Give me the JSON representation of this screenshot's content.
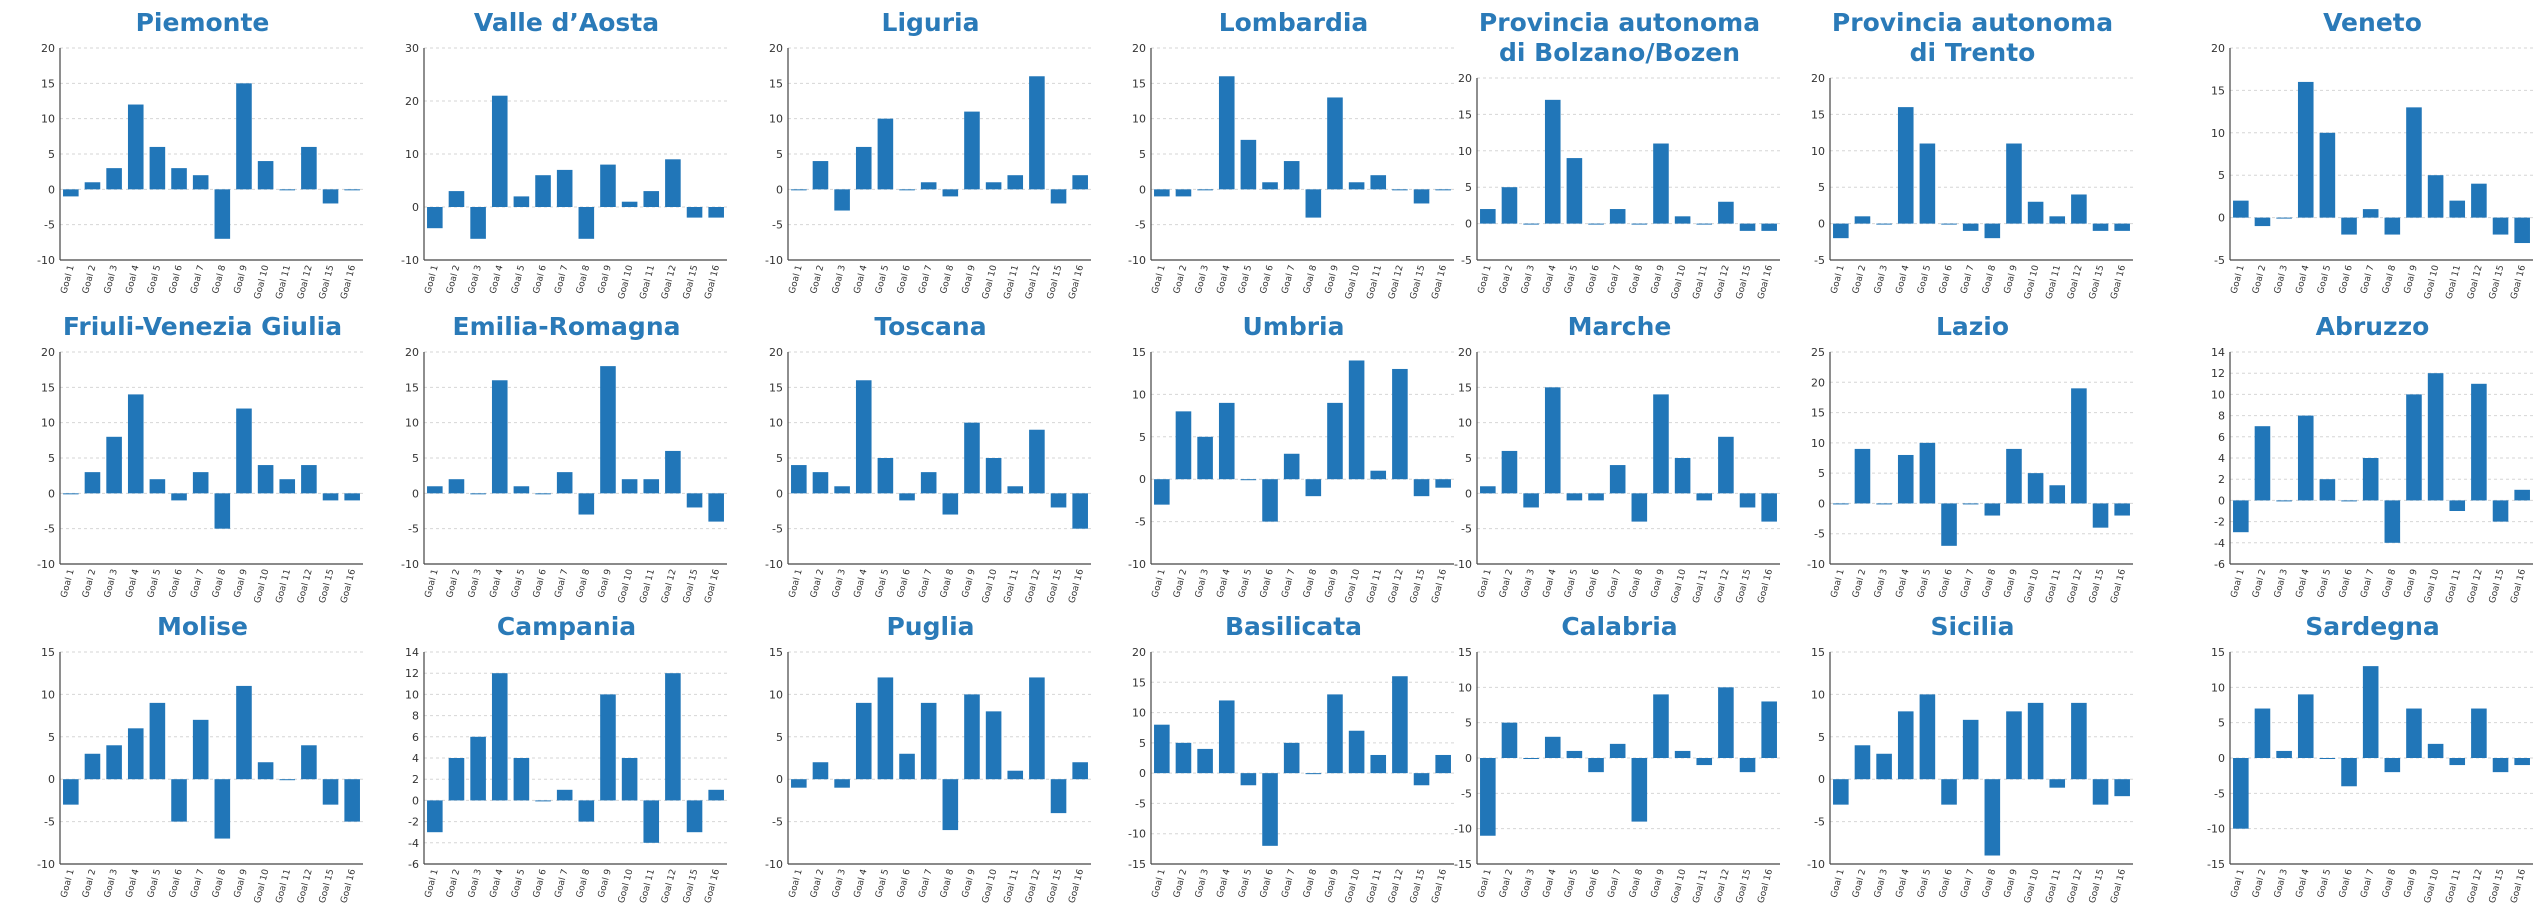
{
  "colors": {
    "bar": "#2176b8",
    "title": "#2a7ab8",
    "axis": "#444444",
    "grid": "#d6d6d6"
  },
  "chart_data": [
    {
      "type": "bar",
      "title": "Piemonte",
      "categories": [
        "Goal 1",
        "Goal 2",
        "Goal 3",
        "Goal 4",
        "Goal 5",
        "Goal 6",
        "Goal 7",
        "Goal 8",
        "Goal 9",
        "Goal 10",
        "Goal 11",
        "Goal 12",
        "Goal 15",
        "Goal 16"
      ],
      "values": [
        -1,
        1,
        3,
        12,
        6,
        3,
        2,
        -7,
        15,
        4,
        0,
        6,
        -2,
        0
      ],
      "ylim": [
        -10,
        20
      ],
      "yticks": [
        -10,
        -5,
        0,
        5,
        10,
        15,
        20
      ],
      "grid": true
    },
    {
      "type": "bar",
      "title": "Valle d’Aosta",
      "categories": [
        "Goal 1",
        "Goal 2",
        "Goal 3",
        "Goal 4",
        "Goal 5",
        "Goal 6",
        "Goal 7",
        "Goal 8",
        "Goal 9",
        "Goal 10",
        "Goal 11",
        "Goal 12",
        "Goal 15",
        "Goal 16"
      ],
      "values": [
        -4,
        3,
        -6,
        21,
        2,
        6,
        7,
        -6,
        8,
        1,
        3,
        9,
        -2,
        -2
      ],
      "ylim": [
        -10,
        30
      ],
      "yticks": [
        -10,
        0,
        10,
        20,
        30
      ],
      "grid": true
    },
    {
      "type": "bar",
      "title": "Liguria",
      "categories": [
        "Goal 1",
        "Goal 2",
        "Goal 3",
        "Goal 4",
        "Goal 5",
        "Goal 6",
        "Goal 7",
        "Goal 8",
        "Goal 9",
        "Goal 10",
        "Goal 11",
        "Goal 12",
        "Goal 15",
        "Goal 16"
      ],
      "values": [
        0,
        4,
        -3,
        6,
        10,
        0,
        1,
        -1,
        11,
        1,
        2,
        16,
        -2,
        2
      ],
      "ylim": [
        -10,
        20
      ],
      "yticks": [
        -10,
        -5,
        0,
        5,
        10,
        15,
        20
      ],
      "grid": true
    },
    {
      "type": "bar",
      "title": "Lombardia",
      "categories": [
        "Goal 1",
        "Goal 2",
        "Goal 3",
        "Goal 4",
        "Goal 5",
        "Goal 6",
        "Goal 7",
        "Goal 8",
        "Goal 9",
        "Goal 10",
        "Goal 11",
        "Goal 12",
        "Goal 15",
        "Goal 16"
      ],
      "values": [
        -1,
        -1,
        0,
        16,
        7,
        1,
        4,
        -4,
        13,
        1,
        2,
        0,
        -2,
        0
      ],
      "ylim": [
        -10,
        20
      ],
      "yticks": [
        -10,
        -5,
        0,
        5,
        10,
        15,
        20
      ],
      "grid": true
    },
    {
      "type": "bar",
      "title": "Provincia autonoma\ndi Bolzano/Bozen",
      "categories": [
        "Goal 1",
        "Goal 2",
        "Goal 3",
        "Goal 4",
        "Goal 5",
        "Goal 6",
        "Goal 7",
        "Goal 8",
        "Goal 9",
        "Goal 10",
        "Goal 11",
        "Goal 12",
        "Goal 15",
        "Goal 16"
      ],
      "values": [
        2,
        5,
        0,
        17,
        9,
        0,
        2,
        0,
        11,
        1,
        0,
        3,
        -1,
        -1
      ],
      "ylim": [
        -5,
        20
      ],
      "yticks": [
        -5,
        0,
        5,
        10,
        15,
        20
      ],
      "grid": true
    },
    {
      "type": "bar",
      "title": "Provincia autonoma\ndi Trento",
      "categories": [
        "Goal 1",
        "Goal 2",
        "Goal 3",
        "Goal 4",
        "Goal 5",
        "Goal 6",
        "Goal 7",
        "Goal 8",
        "Goal 9",
        "Goal 10",
        "Goal 11",
        "Goal 12",
        "Goal 15",
        "Goal 16"
      ],
      "values": [
        -2,
        1,
        0,
        16,
        11,
        0,
        -1,
        -2,
        11,
        3,
        1,
        4,
        -1,
        -1
      ],
      "ylim": [
        -5,
        20
      ],
      "yticks": [
        -5,
        0,
        5,
        10,
        15,
        20
      ],
      "grid": true
    },
    {
      "type": "bar",
      "title": "Veneto",
      "categories": [
        "Goal 1",
        "Goal 2",
        "Goal 3",
        "Goal 4",
        "Goal 5",
        "Goal 6",
        "Goal 7",
        "Goal 8",
        "Goal 9",
        "Goal 10",
        "Goal 11",
        "Goal 12",
        "Goal 15",
        "Goal 16"
      ],
      "values": [
        2,
        -1,
        0,
        16,
        10,
        -2,
        1,
        -2,
        13,
        5,
        2,
        4,
        -2,
        -3
      ],
      "ylim": [
        -5,
        20
      ],
      "yticks": [
        -5,
        0,
        5,
        10,
        15,
        20
      ],
      "grid": true
    },
    {
      "type": "bar",
      "title": "Friuli-Venezia Giulia",
      "categories": [
        "Goal 1",
        "Goal 2",
        "Goal 3",
        "Goal 4",
        "Goal 5",
        "Goal 6",
        "Goal 7",
        "Goal 8",
        "Goal 9",
        "Goal 10",
        "Goal 11",
        "Goal 12",
        "Goal 15",
        "Goal 16"
      ],
      "values": [
        0,
        3,
        8,
        14,
        2,
        -1,
        3,
        -5,
        12,
        4,
        2,
        4,
        -1,
        -1
      ],
      "ylim": [
        -10,
        20
      ],
      "yticks": [
        -10,
        -5,
        0,
        5,
        10,
        15,
        20
      ],
      "grid": true
    },
    {
      "type": "bar",
      "title": "Emilia-Romagna",
      "categories": [
        "Goal 1",
        "Goal 2",
        "Goal 3",
        "Goal 4",
        "Goal 5",
        "Goal 6",
        "Goal 7",
        "Goal 8",
        "Goal 9",
        "Goal 10",
        "Goal 11",
        "Goal 12",
        "Goal 15",
        "Goal 16"
      ],
      "values": [
        1,
        2,
        0,
        16,
        1,
        0,
        3,
        -3,
        18,
        2,
        2,
        6,
        -2,
        -4
      ],
      "ylim": [
        -10,
        20
      ],
      "yticks": [
        -10,
        -5,
        0,
        5,
        10,
        15,
        20
      ],
      "grid": true
    },
    {
      "type": "bar",
      "title": "Toscana",
      "categories": [
        "Goal 1",
        "Goal 2",
        "Goal 3",
        "Goal 4",
        "Goal 5",
        "Goal 6",
        "Goal 7",
        "Goal 8",
        "Goal 9",
        "Goal 10",
        "Goal 11",
        "Goal 12",
        "Goal 15",
        "Goal 16"
      ],
      "values": [
        4,
        3,
        1,
        16,
        5,
        -1,
        3,
        -3,
        10,
        5,
        1,
        9,
        -2,
        -5
      ],
      "ylim": [
        -10,
        20
      ],
      "yticks": [
        -10,
        -5,
        0,
        5,
        10,
        15,
        20
      ],
      "grid": true
    },
    {
      "type": "bar",
      "title": "Umbria",
      "categories": [
        "Goal 1",
        "Goal 2",
        "Goal 3",
        "Goal 4",
        "Goal 5",
        "Goal 6",
        "Goal 7",
        "Goal 8",
        "Goal 9",
        "Goal 10",
        "Goal 11",
        "Goal 12",
        "Goal 15",
        "Goal 16"
      ],
      "values": [
        -3,
        8,
        5,
        9,
        0,
        -5,
        3,
        -2,
        9,
        14,
        1,
        13,
        -2,
        -1
      ],
      "ylim": [
        -10,
        15
      ],
      "yticks": [
        -10,
        -5,
        0,
        5,
        10,
        15
      ],
      "grid": true
    },
    {
      "type": "bar",
      "title": "Marche",
      "categories": [
        "Goal 1",
        "Goal 2",
        "Goal 3",
        "Goal 4",
        "Goal 5",
        "Goal 6",
        "Goal 7",
        "Goal 8",
        "Goal 9",
        "Goal 10",
        "Goal 11",
        "Goal 12",
        "Goal 15",
        "Goal 16"
      ],
      "values": [
        1,
        6,
        -2,
        15,
        -1,
        -1,
        4,
        -4,
        14,
        5,
        -1,
        8,
        -2,
        -4
      ],
      "ylim": [
        -10,
        20
      ],
      "yticks": [
        -10,
        -5,
        0,
        5,
        10,
        15,
        20
      ],
      "grid": true
    },
    {
      "type": "bar",
      "title": "Lazio",
      "categories": [
        "Goal 1",
        "Goal 2",
        "Goal 3",
        "Goal 4",
        "Goal 5",
        "Goal 6",
        "Goal 7",
        "Goal 8",
        "Goal 9",
        "Goal 10",
        "Goal 11",
        "Goal 12",
        "Goal 15",
        "Goal 16"
      ],
      "values": [
        0,
        9,
        0,
        8,
        10,
        -7,
        0,
        -2,
        9,
        5,
        3,
        19,
        -4,
        -2
      ],
      "ylim": [
        -10,
        25
      ],
      "yticks": [
        -10,
        -5,
        0,
        5,
        10,
        15,
        20,
        25
      ],
      "grid": true
    },
    {
      "type": "bar",
      "title": "Abruzzo",
      "categories": [
        "Goal 1",
        "Goal 2",
        "Goal 3",
        "Goal 4",
        "Goal 5",
        "Goal 6",
        "Goal 7",
        "Goal 8",
        "Goal 9",
        "Goal 10",
        "Goal 11",
        "Goal 12",
        "Goal 15",
        "Goal 16"
      ],
      "values": [
        -3,
        7,
        0,
        8,
        2,
        0,
        4,
        -4,
        10,
        12,
        -1,
        11,
        -2,
        1
      ],
      "ylim": [
        -6,
        14
      ],
      "yticks": [
        -6,
        -4,
        -2,
        0,
        2,
        4,
        6,
        8,
        10,
        12,
        14
      ],
      "grid": true
    },
    {
      "type": "bar",
      "title": "Molise",
      "categories": [
        "Goal 1",
        "Goal 2",
        "Goal 3",
        "Goal 4",
        "Goal 5",
        "Goal 6",
        "Goal 7",
        "Goal 8",
        "Goal 9",
        "Goal 10",
        "Goal 11",
        "Goal 12",
        "Goal 15",
        "Goal 16"
      ],
      "values": [
        -3,
        3,
        4,
        6,
        9,
        -5,
        7,
        -7,
        11,
        2,
        0,
        4,
        -3,
        -5
      ],
      "ylim": [
        -10,
        15
      ],
      "yticks": [
        -10,
        -5,
        0,
        5,
        10,
        15
      ],
      "grid": true
    },
    {
      "type": "bar",
      "title": "Campania",
      "categories": [
        "Goal 1",
        "Goal 2",
        "Goal 3",
        "Goal 4",
        "Goal 5",
        "Goal 6",
        "Goal 7",
        "Goal 8",
        "Goal 9",
        "Goal 10",
        "Goal 11",
        "Goal 12",
        "Goal 15",
        "Goal 16"
      ],
      "values": [
        -3,
        4,
        6,
        12,
        4,
        0,
        1,
        -2,
        10,
        4,
        -4,
        12,
        -3,
        1
      ],
      "ylim": [
        -6,
        14
      ],
      "yticks": [
        -6,
        -4,
        -2,
        0,
        2,
        4,
        6,
        8,
        10,
        12,
        14
      ],
      "grid": true
    },
    {
      "type": "bar",
      "title": "Puglia",
      "categories": [
        "Goal 1",
        "Goal 2",
        "Goal 3",
        "Goal 4",
        "Goal 5",
        "Goal 6",
        "Goal 7",
        "Goal 8",
        "Goal 9",
        "Goal 10",
        "Goal 11",
        "Goal 12",
        "Goal 15",
        "Goal 16"
      ],
      "values": [
        -1,
        2,
        -1,
        9,
        12,
        3,
        9,
        -6,
        10,
        8,
        1,
        12,
        -4,
        2
      ],
      "ylim": [
        -10,
        15
      ],
      "yticks": [
        -10,
        -5,
        0,
        5,
        10,
        15
      ],
      "grid": true
    },
    {
      "type": "bar",
      "title": "Basilicata",
      "categories": [
        "Goal 1",
        "Goal 2",
        "Goal 3",
        "Goal 4",
        "Goal 5",
        "Goal 6",
        "Goal 7",
        "Goal 8",
        "Goal 9",
        "Goal 10",
        "Goal 11",
        "Goal 12",
        "Goal 15",
        "Goal 16"
      ],
      "values": [
        8,
        5,
        4,
        12,
        -2,
        -12,
        5,
        0,
        13,
        7,
        3,
        16,
        -2,
        3
      ],
      "ylim": [
        -15,
        20
      ],
      "yticks": [
        -15,
        -10,
        -5,
        0,
        5,
        10,
        15,
        20
      ],
      "grid": true
    },
    {
      "type": "bar",
      "title": "Calabria",
      "categories": [
        "Goal 1",
        "Goal 2",
        "Goal 3",
        "Goal 4",
        "Goal 5",
        "Goal 6",
        "Goal 7",
        "Goal 8",
        "Goal 9",
        "Goal 10",
        "Goal 11",
        "Goal 12",
        "Goal 15",
        "Goal 16"
      ],
      "values": [
        -11,
        5,
        0,
        3,
        1,
        -2,
        2,
        -9,
        9,
        1,
        -1,
        10,
        -2,
        8
      ],
      "ylim": [
        -15,
        15
      ],
      "yticks": [
        -15,
        -10,
        -5,
        0,
        5,
        10,
        15
      ],
      "grid": true
    },
    {
      "type": "bar",
      "title": "Sicilia",
      "categories": [
        "Goal 1",
        "Goal 2",
        "Goal 3",
        "Goal 4",
        "Goal 5",
        "Goal 6",
        "Goal 7",
        "Goal 8",
        "Goal 9",
        "Goal 10",
        "Goal 11",
        "Goal 12",
        "Goal 15",
        "Goal 16"
      ],
      "values": [
        -3,
        4,
        3,
        8,
        10,
        -3,
        7,
        -9,
        8,
        9,
        -1,
        9,
        -3,
        -2
      ],
      "ylim": [
        -10,
        15
      ],
      "yticks": [
        -10,
        -5,
        0,
        5,
        10,
        15
      ],
      "grid": true
    },
    {
      "type": "bar",
      "title": "Sardegna",
      "categories": [
        "Goal 1",
        "Goal 2",
        "Goal 3",
        "Goal 4",
        "Goal 5",
        "Goal 6",
        "Goal 7",
        "Goal 8",
        "Goal 9",
        "Goal 10",
        "Goal 11",
        "Goal 12",
        "Goal 15",
        "Goal 16"
      ],
      "values": [
        -10,
        7,
        1,
        9,
        0,
        -4,
        13,
        -2,
        7,
        2,
        -1,
        7,
        -2,
        -1
      ],
      "ylim": [
        -15,
        15
      ],
      "yticks": [
        -15,
        -10,
        -5,
        0,
        5,
        10,
        15
      ],
      "grid": true
    }
  ]
}
